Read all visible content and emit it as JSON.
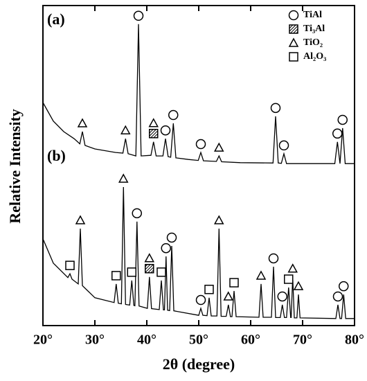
{
  "chart_data": {
    "type": "line",
    "y_label": "Relative Intensity",
    "x_label": "2θ (degree)",
    "xlim": [
      20,
      80
    ],
    "xticks": [
      {
        "value": 20,
        "label": "20°"
      },
      {
        "value": 30,
        "label": "30°"
      },
      {
        "value": 40,
        "label": "40°"
      },
      {
        "value": 50,
        "label": "50°"
      },
      {
        "value": 60,
        "label": "60°"
      },
      {
        "value": 70,
        "label": "70°"
      },
      {
        "value": 80,
        "label": "80°"
      }
    ],
    "ylim": [
      0,
      100
    ],
    "color": "#000000",
    "series": [
      {
        "name": "(a)",
        "x": [
          20,
          22,
          24,
          26,
          27.1,
          27.6,
          28.1,
          30,
          34,
          35.4,
          35.9,
          36.4,
          37.9,
          38.4,
          38.9,
          40.8,
          41.3,
          41.8,
          43.1,
          43.6,
          44.1,
          44.6,
          45.1,
          45.6,
          48,
          49.9,
          50.4,
          50.9,
          53.4,
          53.9,
          54.4,
          58,
          64.3,
          64.8,
          65.3,
          65.9,
          66.4,
          66.9,
          70,
          76.2,
          76.7,
          77.2,
          77.7,
          78.2,
          80
        ],
        "values": [
          69.7,
          63.9,
          60.6,
          58.4,
          56.8,
          60.6,
          56.3,
          55.2,
          54.1,
          53.9,
          58.4,
          53.7,
          53.0,
          94.2,
          53.0,
          53.2,
          57.4,
          53.0,
          53.0,
          58.4,
          52.8,
          52.6,
          63.2,
          52.4,
          51.9,
          51.6,
          54.1,
          51.5,
          51.3,
          53.0,
          51.2,
          50.9,
          50.8,
          65.4,
          50.8,
          50.7,
          53.7,
          50.6,
          50.6,
          50.6,
          57.4,
          50.6,
          61.7,
          50.6,
          50.6
        ]
      },
      {
        "name": "(b)",
        "x": [
          20,
          22,
          24.8,
          25.2,
          25.6,
          26.8,
          27.2,
          27.6,
          30,
          33.7,
          34.1,
          34.5,
          35.1,
          35.5,
          35.9,
          36.7,
          37.1,
          37.5,
          37.7,
          38.1,
          38.5,
          40.1,
          40.5,
          40.9,
          42.4,
          42.8,
          43.2,
          43.4,
          43.7,
          44.0,
          44.4,
          44.8,
          45.2,
          50.0,
          50.4,
          50.8,
          51.6,
          52.0,
          52.4,
          53.5,
          53.9,
          54.3,
          55.3,
          55.7,
          56.1,
          56.4,
          56.8,
          57.2,
          61.6,
          62.0,
          62.4,
          64.0,
          64.4,
          64.8,
          65.7,
          66.1,
          66.5,
          66.9,
          67.3,
          67.7,
          67.8,
          68.1,
          68.4,
          68.9,
          69.2,
          69.5,
          76.4,
          76.8,
          77.2,
          77.5,
          77.9,
          78.3,
          80
        ],
        "values": [
          27.1,
          19.5,
          15.0,
          16.2,
          14.5,
          13.0,
          30.3,
          12.5,
          8.7,
          7.2,
          13.0,
          7.0,
          6.8,
          43.3,
          6.6,
          6.4,
          14.1,
          6.3,
          6.2,
          32.5,
          6.1,
          5.4,
          15.2,
          5.3,
          5.0,
          14.1,
          4.9,
          4.9,
          21.6,
          4.8,
          4.7,
          24.9,
          4.6,
          3.2,
          5.4,
          3.2,
          3.1,
          8.7,
          3.0,
          3.0,
          30.3,
          2.9,
          2.9,
          6.5,
          2.8,
          2.8,
          10.8,
          2.8,
          2.6,
          13.0,
          2.6,
          2.6,
          18.4,
          2.5,
          2.5,
          6.5,
          2.5,
          2.5,
          11.9,
          2.5,
          2.5,
          15.2,
          2.4,
          2.4,
          9.7,
          2.4,
          2.2,
          6.5,
          2.2,
          2.2,
          9.7,
          2.2,
          2.2
        ]
      }
    ],
    "phases": [
      {
        "name": "TiAl",
        "symbol": "circle",
        "peaks": [
          [
            38.4,
            43.6,
            45.1,
            50.4,
            64.8,
            66.4,
            76.7,
            77.7
          ],
          [
            38.1,
            43.7,
            44.8,
            50.4,
            64.4,
            66.1,
            76.8,
            77.9
          ]
        ]
      },
      {
        "name": "Ti₃Al",
        "symbol": "hatched-square",
        "peaks": [
          [
            41.3
          ],
          [
            40.5
          ]
        ]
      },
      {
        "name": "TiO₂",
        "symbol": "triangle",
        "peaks": [
          [
            27.6,
            35.9,
            41.3,
            53.9
          ],
          [
            27.2,
            35.5,
            40.5,
            53.9,
            55.7,
            62.0,
            68.1,
            69.2
          ]
        ]
      },
      {
        "name": "Al₂O₃",
        "symbol": "square",
        "peaks": [
          [],
          [
            25.2,
            34.1,
            37.1,
            42.8,
            52.0,
            56.8,
            67.3
          ]
        ]
      }
    ]
  }
}
